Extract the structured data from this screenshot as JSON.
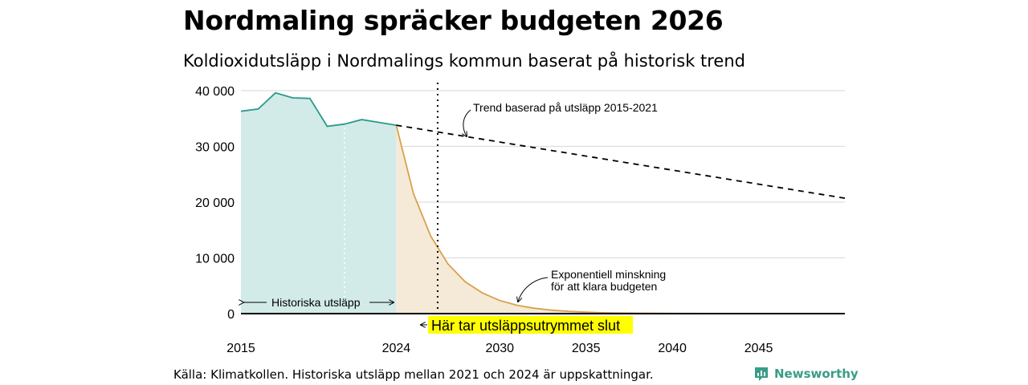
{
  "title": "Nordmaling spräcker budgeten 2026",
  "subtitle": "Koldioxidutsläpp i Nordmalings kommun baserat på historisk trend",
  "source": "Källa: Klimatkollen. Historiska utsläpp mellan 2021 och 2024 är uppskattningar.",
  "brand": {
    "name": "Newsworthy",
    "icon": "newsworthy-logo-icon",
    "color": "#3a9c86"
  },
  "colors": {
    "historical": "#2a9a8a",
    "historical_fill": "#d2ebe8",
    "budget": "#d9a14a",
    "budget_fill": "#f5ead8",
    "highlight": "#ffff00"
  },
  "chart_data": {
    "type": "line",
    "ylim": [
      0,
      40000
    ],
    "xlim": [
      2015,
      2050
    ],
    "y_ticks": [
      0,
      10000,
      20000,
      30000,
      40000
    ],
    "y_tick_labels": [
      "0",
      "10 000",
      "20 000",
      "30 000",
      "40 000"
    ],
    "x_ticks": [
      2015,
      2024,
      2030,
      2035,
      2040,
      2045
    ],
    "x_tick_labels": [
      "2015",
      "2024",
      "2030",
      "2035",
      "2040",
      "2045"
    ],
    "series": [
      {
        "name": "Historiska utsläpp",
        "x": [
          2015,
          2016,
          2017,
          2018,
          2019,
          2020,
          2021,
          2022,
          2023,
          2024
        ],
        "values": [
          36300,
          36700,
          39600,
          38700,
          38600,
          33600,
          34000,
          34800,
          34300,
          33800
        ]
      },
      {
        "name": "Trend baserad på utsläpp 2015-2021",
        "x": [
          2024,
          2050
        ],
        "values": [
          33800,
          20700
        ]
      },
      {
        "name": "Exponentiell minskning för att klara budgeten",
        "x": [
          2024,
          2025,
          2026,
          2027,
          2028,
          2029,
          2030,
          2031,
          2032,
          2033,
          2034,
          2035,
          2036,
          2037,
          2038,
          2039,
          2040,
          2042,
          2045,
          2050
        ],
        "values": [
          33800,
          21500,
          13900,
          8900,
          5700,
          3700,
          2350,
          1500,
          970,
          620,
          400,
          255,
          165,
          105,
          68,
          44,
          28,
          12,
          3,
          0
        ]
      }
    ],
    "markers": {
      "budget_end_year": 2026.4,
      "estimate_start_year": 2021
    },
    "annotations": {
      "trend": "Trend baserad på utsläpp 2015-2021",
      "exp_line1": "Exponentiell minskning",
      "exp_line2": "för att klara budgeten",
      "historical": "Historiska utsläpp",
      "budget_end": "Här tar utsläppsutrymmet slut"
    }
  }
}
